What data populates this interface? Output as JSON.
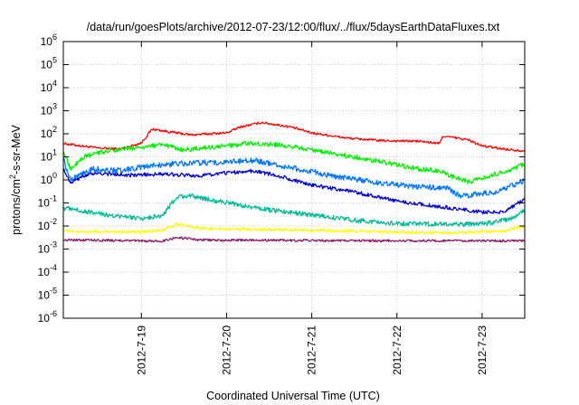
{
  "chart_data": {
    "type": "line",
    "title": "/data/run/goesPlots/archive/2012-07-23/12:00/flux/../flux/5daysEarthDataFluxes.txt",
    "xlabel": "Coordinated Universal Time (UTC)",
    "ylabel": {
      "base": "protons/cm",
      "sup": "2",
      "rest": "-s-sr-MeV"
    },
    "y_scale": "log",
    "ylim": [
      "1e-6",
      "1e6"
    ],
    "y_ticks": [
      {
        "base": "10",
        "exp": "6"
      },
      {
        "base": "10",
        "exp": "5"
      },
      {
        "base": "10",
        "exp": "4"
      },
      {
        "base": "10",
        "exp": "3"
      },
      {
        "base": "10",
        "exp": "2"
      },
      {
        "base": "10",
        "exp": "1"
      },
      {
        "base": "10",
        "exp": "0"
      },
      {
        "base": "10",
        "exp": "-1"
      },
      {
        "base": "10",
        "exp": "-2"
      },
      {
        "base": "10",
        "exp": "-3"
      },
      {
        "base": "10",
        "exp": "-4"
      },
      {
        "base": "10",
        "exp": "-5"
      },
      {
        "base": "10",
        "exp": "-6"
      }
    ],
    "xlim": [
      "2012-07-18 02:00",
      "2012-07-23 12:00"
    ],
    "x_ticks": [
      "2012-7-19",
      "2012-7-20",
      "2012-7-21",
      "2012-7-22",
      "2012-7-23"
    ],
    "grid": true,
    "series": [
      {
        "color": "#ff0000",
        "noise": 0.05,
        "points": [
          [
            "2012-07-18 02:00",
            38
          ],
          [
            "2012-07-18 07:00",
            30
          ],
          [
            "2012-07-18 12:00",
            24
          ],
          [
            "2012-07-18 18:00",
            22
          ],
          [
            "2012-07-19 00:00",
            40
          ],
          [
            "2012-07-19 03:00",
            160
          ],
          [
            "2012-07-19 08:00",
            120
          ],
          [
            "2012-07-19 14:00",
            90
          ],
          [
            "2012-07-20 00:00",
            110
          ],
          [
            "2012-07-20 04:00",
            200
          ],
          [
            "2012-07-20 10:00",
            310
          ],
          [
            "2012-07-20 18:00",
            200
          ],
          [
            "2012-07-21 00:00",
            110
          ],
          [
            "2012-07-21 10:00",
            65
          ],
          [
            "2012-07-21 20:00",
            50
          ],
          [
            "2012-07-22 06:00",
            48
          ],
          [
            "2012-07-22 12:00",
            38
          ],
          [
            "2012-07-22 13:00",
            80
          ],
          [
            "2012-07-22 20:00",
            55
          ],
          [
            "2012-07-23 00:00",
            30
          ],
          [
            "2012-07-23 06:00",
            22
          ],
          [
            "2012-07-23 12:00",
            18
          ]
        ]
      },
      {
        "color": "#00ee00",
        "noise": 0.1,
        "points": [
          [
            "2012-07-18 02:00",
            20
          ],
          [
            "2012-07-18 04:00",
            3
          ],
          [
            "2012-07-18 08:00",
            10
          ],
          [
            "2012-07-18 14:00",
            18
          ],
          [
            "2012-07-19 00:00",
            25
          ],
          [
            "2012-07-19 06:00",
            35
          ],
          [
            "2012-07-19 12:00",
            20
          ],
          [
            "2012-07-20 00:00",
            30
          ],
          [
            "2012-07-20 06:00",
            40
          ],
          [
            "2012-07-20 18:00",
            30
          ],
          [
            "2012-07-21 06:00",
            14
          ],
          [
            "2012-07-21 20:00",
            6
          ],
          [
            "2012-07-22 06:00",
            3
          ],
          [
            "2012-07-22 12:00",
            2.5
          ],
          [
            "2012-07-22 15:00",
            1.5
          ],
          [
            "2012-07-22 20:00",
            0.8
          ],
          [
            "2012-07-23 02:00",
            1.5
          ],
          [
            "2012-07-23 08:00",
            2.5
          ],
          [
            "2012-07-23 12:00",
            5
          ]
        ]
      },
      {
        "color": "#0077ff",
        "noise": 0.12,
        "points": [
          [
            "2012-07-18 02:00",
            8
          ],
          [
            "2012-07-18 04:00",
            1
          ],
          [
            "2012-07-18 10:00",
            3
          ],
          [
            "2012-07-18 18:00",
            2.5
          ],
          [
            "2012-07-19 02:00",
            4
          ],
          [
            "2012-07-19 10:00",
            5
          ],
          [
            "2012-07-20 00:00",
            6
          ],
          [
            "2012-07-20 08:00",
            7
          ],
          [
            "2012-07-20 20:00",
            3
          ],
          [
            "2012-07-21 06:00",
            1.5
          ],
          [
            "2012-07-21 20:00",
            0.7
          ],
          [
            "2012-07-22 06:00",
            0.5
          ],
          [
            "2012-07-22 14:00",
            0.45
          ],
          [
            "2012-07-22 18:00",
            0.2
          ],
          [
            "2012-07-23 04:00",
            0.3
          ],
          [
            "2012-07-23 12:00",
            0.9
          ]
        ]
      },
      {
        "color": "#0000cc",
        "noise": 0.08,
        "points": [
          [
            "2012-07-18 02:00",
            3
          ],
          [
            "2012-07-18 04:00",
            0.8
          ],
          [
            "2012-07-18 10:00",
            2
          ],
          [
            "2012-07-18 20:00",
            1.6
          ],
          [
            "2012-07-19 06:00",
            1.8
          ],
          [
            "2012-07-19 16:00",
            1.5
          ],
          [
            "2012-07-20 00:00",
            2
          ],
          [
            "2012-07-20 08:00",
            2.5
          ],
          [
            "2012-07-20 16:00",
            1.3
          ],
          [
            "2012-07-21 00:00",
            0.6
          ],
          [
            "2012-07-21 12:00",
            0.3
          ],
          [
            "2012-07-22 00:00",
            0.12
          ],
          [
            "2012-07-22 12:00",
            0.07
          ],
          [
            "2012-07-23 00:00",
            0.04
          ],
          [
            "2012-07-23 06:00",
            0.04
          ],
          [
            "2012-07-23 12:00",
            0.15
          ]
        ]
      },
      {
        "color": "#00bb99",
        "noise": 0.1,
        "points": [
          [
            "2012-07-18 02:00",
            0.06
          ],
          [
            "2012-07-18 12:00",
            0.035
          ],
          [
            "2012-07-19 00:00",
            0.02
          ],
          [
            "2012-07-19 06:00",
            0.03
          ],
          [
            "2012-07-19 10:00",
            0.18
          ],
          [
            "2012-07-19 14:00",
            0.2
          ],
          [
            "2012-07-20 00:00",
            0.1
          ],
          [
            "2012-07-20 12:00",
            0.05
          ],
          [
            "2012-07-21 00:00",
            0.03
          ],
          [
            "2012-07-21 12:00",
            0.018
          ],
          [
            "2012-07-22 00:00",
            0.013
          ],
          [
            "2012-07-22 12:00",
            0.012
          ],
          [
            "2012-07-23 00:00",
            0.012
          ],
          [
            "2012-07-23 08:00",
            0.02
          ],
          [
            "2012-07-23 12:00",
            0.05
          ]
        ]
      },
      {
        "color": "#ffff00",
        "noise": 0.06,
        "points": [
          [
            "2012-07-18 02:00",
            0.006
          ],
          [
            "2012-07-19 00:00",
            0.0055
          ],
          [
            "2012-07-19 06:00",
            0.0065
          ],
          [
            "2012-07-19 10:00",
            0.012
          ],
          [
            "2012-07-19 16:00",
            0.008
          ],
          [
            "2012-07-20 12:00",
            0.007
          ],
          [
            "2012-07-21 12:00",
            0.006
          ],
          [
            "2012-07-22 12:00",
            0.005
          ],
          [
            "2012-07-23 06:00",
            0.006
          ],
          [
            "2012-07-23 12:00",
            0.01
          ]
        ]
      },
      {
        "color": "#8b1a6b",
        "noise": 0.05,
        "points": [
          [
            "2012-07-18 02:00",
            0.0025
          ],
          [
            "2012-07-19 06:00",
            0.0022
          ],
          [
            "2012-07-19 10:00",
            0.0032
          ],
          [
            "2012-07-19 16:00",
            0.0025
          ],
          [
            "2012-07-21 12:00",
            0.0023
          ],
          [
            "2012-07-23 12:00",
            0.0023
          ]
        ]
      }
    ]
  }
}
